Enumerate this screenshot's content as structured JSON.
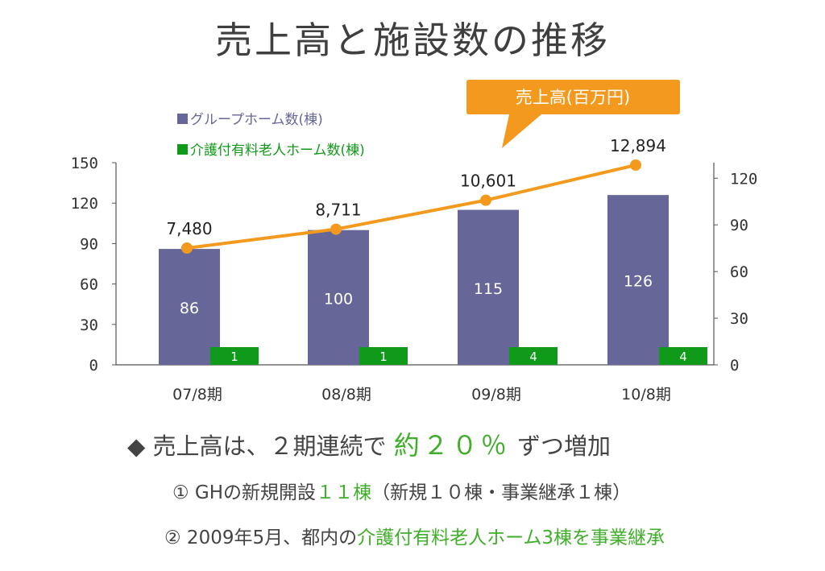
{
  "title": "売上高と施設数の推移",
  "chart_data": {
    "type": "bar",
    "categories": [
      "07/8期",
      "08/8期",
      "09/8期",
      "10/8期"
    ],
    "series": [
      {
        "name": "グループホーム数(棟)",
        "kind": "bar",
        "axis": "left",
        "color": "#676699",
        "values": [
          86,
          100,
          115,
          126
        ]
      },
      {
        "name": "介護付有料老人ホーム数(棟)",
        "kind": "bar",
        "axis": "right",
        "color": "#109a19",
        "values": [
          1,
          1,
          4,
          4
        ]
      },
      {
        "name": "売上高(百万円)",
        "kind": "line",
        "axis": "right",
        "color": "#f39a1e",
        "values": [
          7480,
          8711,
          10601,
          12894
        ],
        "labels": [
          "7,480",
          "8,711",
          "10,601",
          "12,894"
        ]
      }
    ],
    "left_axis": {
      "ylim": [
        0,
        150
      ],
      "ticks": [
        "0",
        "30",
        "60",
        "90",
        "120",
        "150"
      ]
    },
    "right_axis": {
      "ylim": [
        0,
        130
      ],
      "ticks": [
        "0",
        "30",
        "60",
        "90",
        "120"
      ]
    },
    "callout": "売上高(百万円)",
    "legend_position": "top-left"
  },
  "notes": {
    "headline_prefix": "◆ 売上高は、２期連続で ",
    "headline_highlight": "約２０％",
    "headline_suffix": " ずつ増加",
    "item1_prefix": "① GHの新規開設",
    "item1_highlight": "１１棟",
    "item1_suffix": "（新規１０棟・事業継承１棟）",
    "item2_prefix": "② 2009年5月、都内の",
    "item2_highlight": "介護付有料老人ホーム3棟を事業継承"
  }
}
